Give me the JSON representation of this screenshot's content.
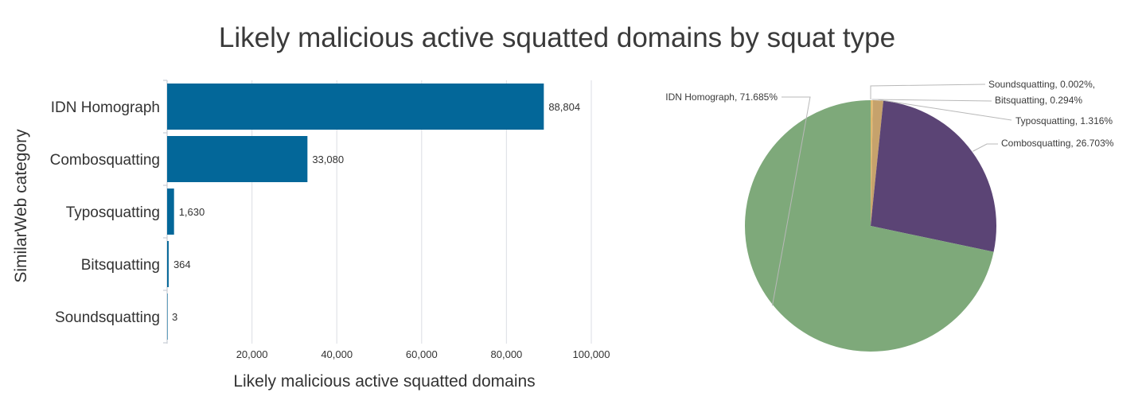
{
  "title": "Likely malicious active squatted domains by squat type",
  "chart_data": [
    {
      "type": "bar",
      "orientation": "horizontal",
      "categories": [
        "IDN Homograph",
        "Combosquatting",
        "Typosquatting",
        "Bitsquatting",
        "Soundsquatting"
      ],
      "values": [
        88804,
        33080,
        1630,
        364,
        3
      ],
      "value_labels": [
        "88,804",
        "33,080",
        "1,630",
        "364",
        "3"
      ],
      "xlabel": "Likely malicious active squatted domains",
      "ylabel": "SimilarWeb category",
      "xlim": [
        0,
        100000
      ],
      "xticks": [
        20000,
        40000,
        60000,
        80000,
        100000
      ],
      "xtick_labels": [
        "20,000",
        "40,000",
        "60,000",
        "80,000",
        "100,000"
      ],
      "grid": "vertical",
      "bar_color": "#036799"
    },
    {
      "type": "pie",
      "start": "top",
      "direction": "clockwise",
      "slices": [
        {
          "name": "Soundsquatting",
          "value": 0.002,
          "label": "Soundsquatting, 0.002%,",
          "color": "#e3c98b"
        },
        {
          "name": "Bitsquatting",
          "value": 0.294,
          "label": "Bitsquatting, 0.294%",
          "color": "#e0b870"
        },
        {
          "name": "Typosquatting",
          "value": 1.316,
          "label": "Typosquatting, 1.316%",
          "color": "#c6a26c"
        },
        {
          "name": "Combosquatting",
          "value": 26.703,
          "label": "Combosquatting, 26.703%",
          "color": "#5b4475"
        },
        {
          "name": "IDN Homograph",
          "value": 71.685,
          "label": "IDN Homograph, 71.685%",
          "color": "#7ea97a"
        }
      ]
    }
  ]
}
